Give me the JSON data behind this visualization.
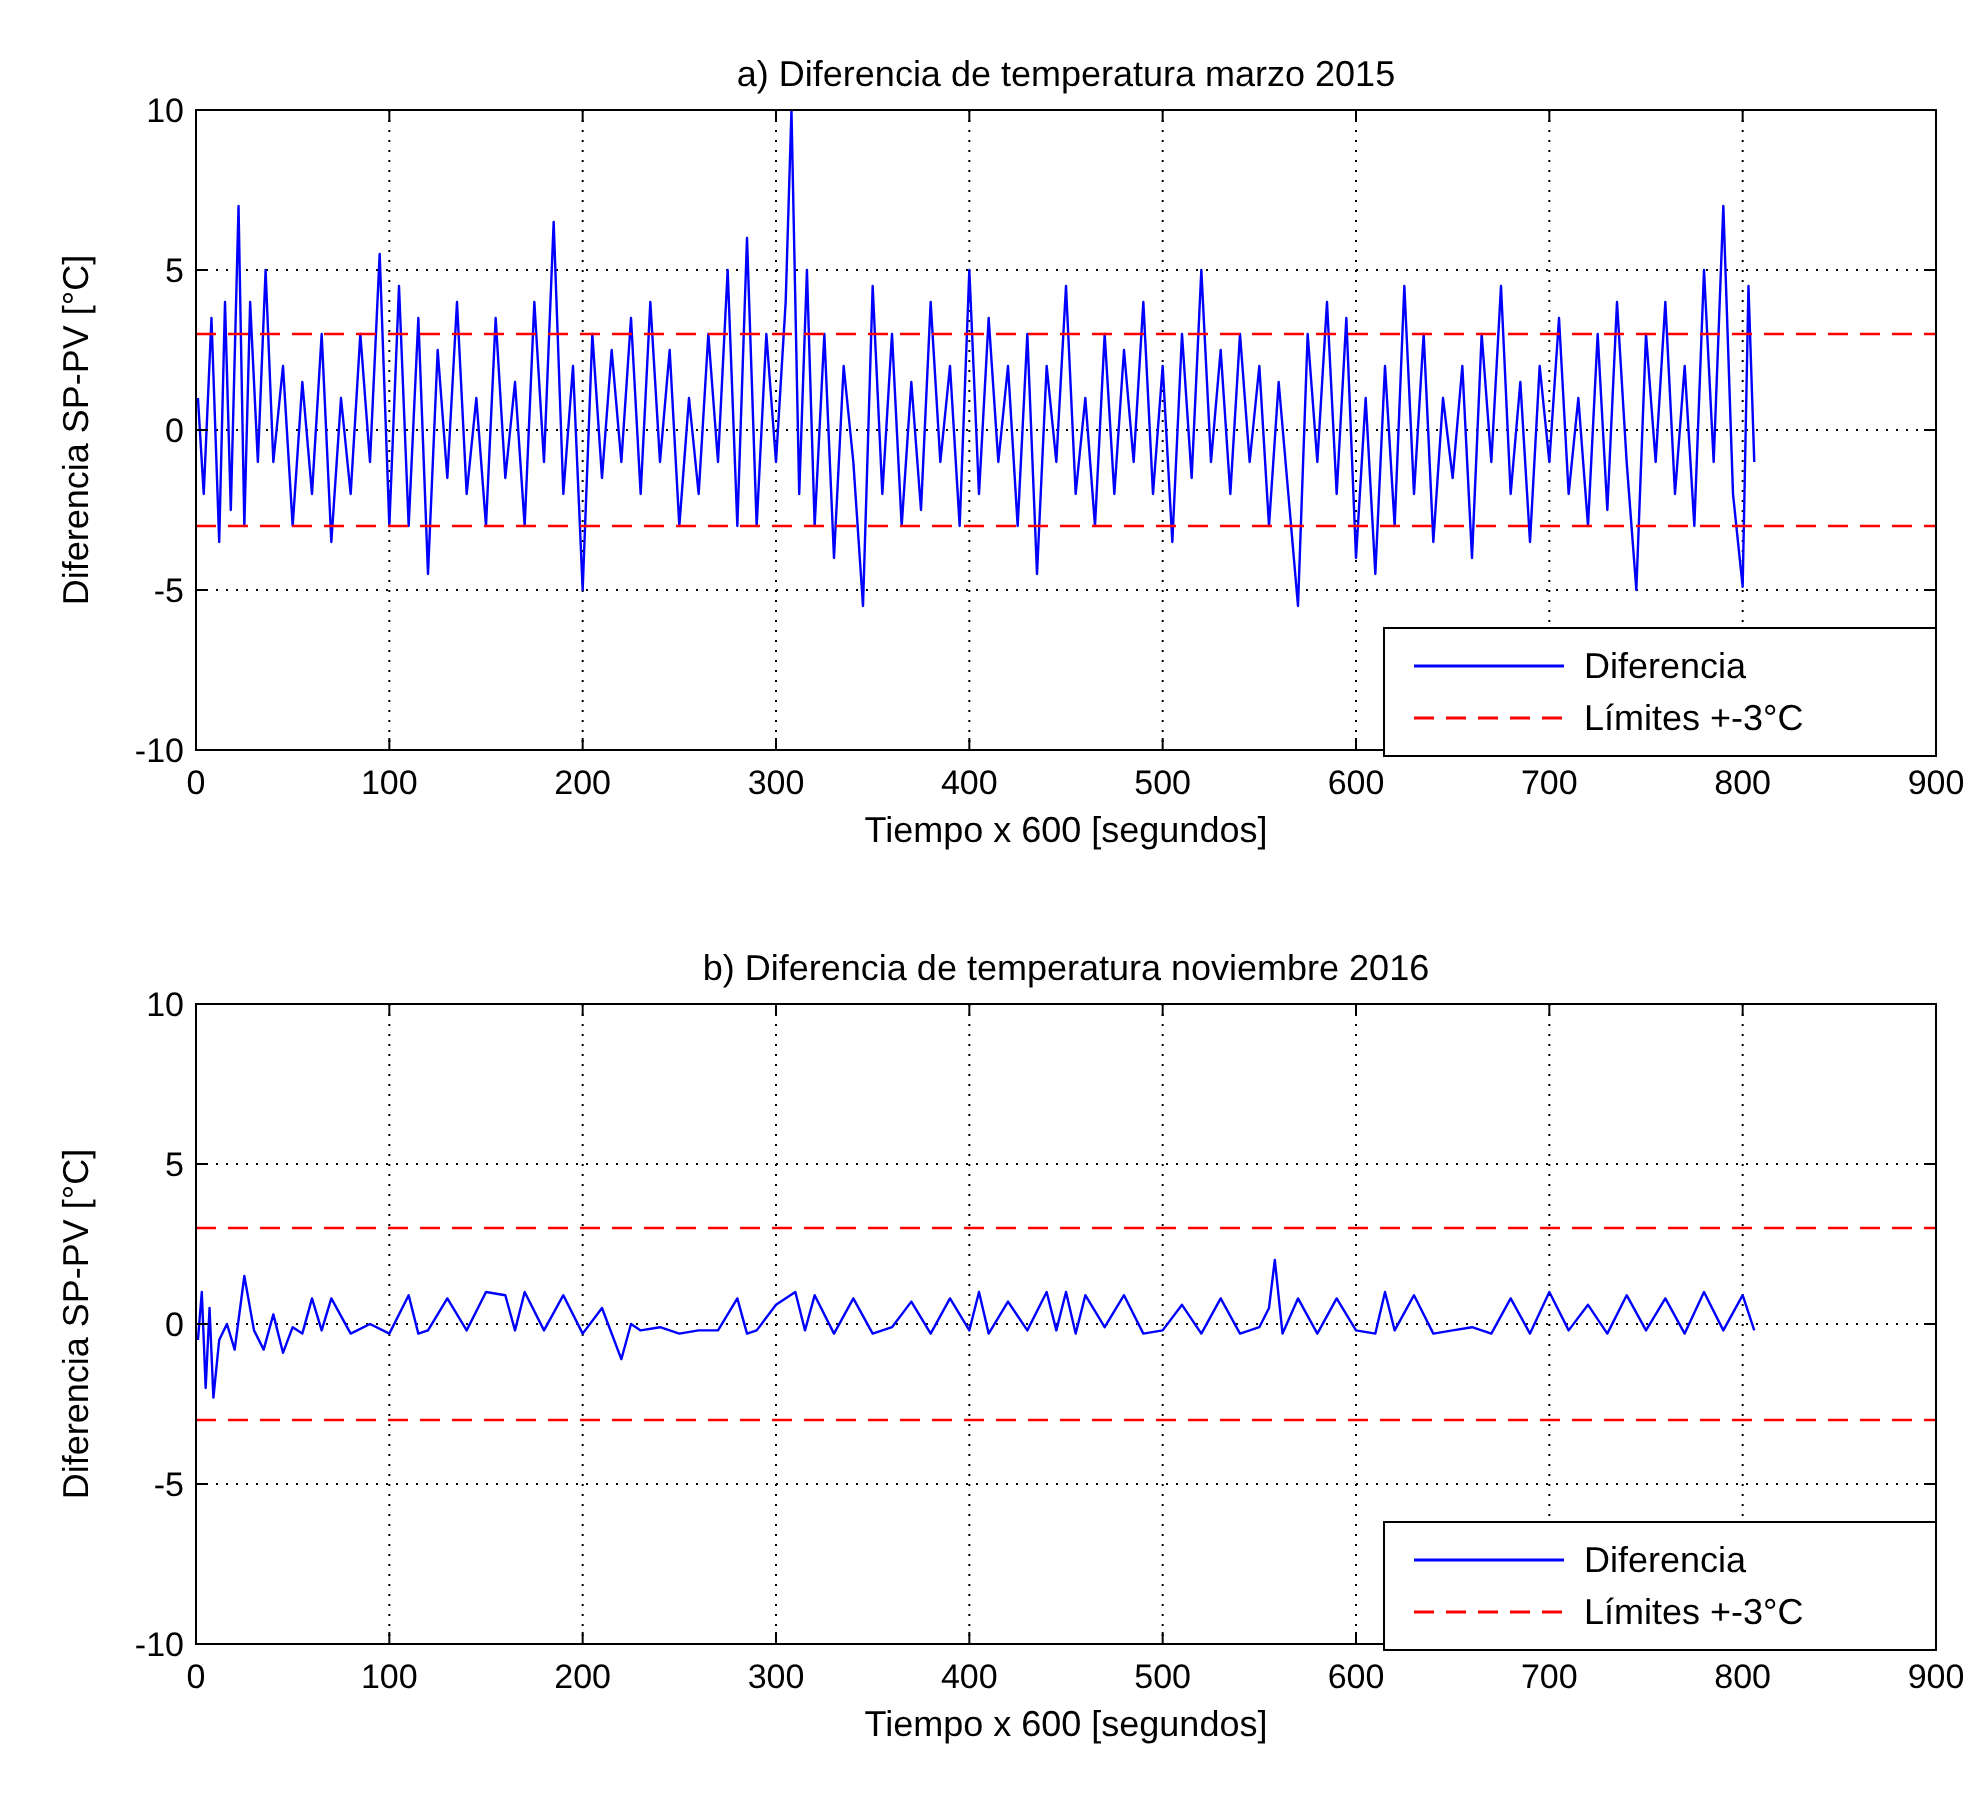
{
  "chart_data": [
    {
      "type": "line",
      "title": "a) Diferencia de temperatura marzo 2015",
      "xlabel": "Tiempo x 600 [segundos]",
      "ylabel": "Diferencia SP-PV [°C]",
      "xlim": [
        0,
        900
      ],
      "xticks": [
        0,
        100,
        200,
        300,
        400,
        500,
        600,
        700,
        800,
        900
      ],
      "ylim": [
        -10,
        10
      ],
      "yticks": [
        -10,
        -5,
        0,
        5,
        10
      ],
      "grid": true,
      "legend": "bottom right",
      "series": [
        {
          "name": "Diferencia",
          "color": "#0000ff",
          "line_style": "solid",
          "x": [
            1,
            4,
            8,
            12,
            15,
            18,
            22,
            25,
            28,
            32,
            36,
            40,
            45,
            50,
            55,
            60,
            65,
            70,
            75,
            80,
            85,
            90,
            95,
            100,
            105,
            110,
            115,
            120,
            125,
            130,
            135,
            140,
            145,
            150,
            155,
            160,
            165,
            170,
            175,
            180,
            185,
            190,
            195,
            200,
            205,
            210,
            215,
            220,
            225,
            230,
            235,
            240,
            245,
            250,
            255,
            260,
            265,
            270,
            275,
            280,
            285,
            290,
            295,
            300,
            305,
            308,
            312,
            316,
            320,
            325,
            330,
            335,
            340,
            345,
            350,
            355,
            360,
            365,
            370,
            375,
            380,
            385,
            390,
            395,
            400,
            405,
            410,
            415,
            420,
            425,
            430,
            435,
            440,
            445,
            450,
            455,
            460,
            465,
            470,
            475,
            480,
            485,
            490,
            495,
            500,
            505,
            510,
            515,
            520,
            525,
            530,
            535,
            540,
            545,
            550,
            555,
            560,
            565,
            570,
            575,
            580,
            585,
            590,
            595,
            600,
            605,
            610,
            615,
            620,
            625,
            630,
            635,
            640,
            645,
            650,
            655,
            660,
            665,
            670,
            675,
            680,
            685,
            690,
            695,
            700,
            705,
            710,
            715,
            720,
            725,
            730,
            735,
            740,
            745,
            750,
            755,
            760,
            765,
            770,
            775,
            780,
            785,
            790,
            795,
            800,
            803,
            806
          ],
          "values": [
            1,
            -2,
            3.5,
            -3.5,
            4,
            -2.5,
            7,
            -3,
            4,
            -1,
            5,
            -1,
            2,
            -3,
            1.5,
            -2,
            3,
            -3.5,
            1,
            -2,
            3,
            -1,
            5.5,
            -3,
            4.5,
            -3,
            3.5,
            -4.5,
            2.5,
            -1.5,
            4,
            -2,
            1,
            -3,
            3.5,
            -1.5,
            1.5,
            -3,
            4,
            -1,
            6.5,
            -2,
            2,
            -5,
            3,
            -1.5,
            2.5,
            -1,
            3.5,
            -2,
            4,
            -1,
            2.5,
            -3,
            1,
            -2,
            3,
            -1,
            5,
            -3,
            6,
            -3,
            3,
            -1,
            4,
            10,
            -2,
            5,
            -3,
            3,
            -4,
            2,
            -1,
            -5.5,
            4.5,
            -2,
            3,
            -3,
            1.5,
            -2.5,
            4,
            -1,
            2,
            -3,
            5,
            -2,
            3.5,
            -1,
            2,
            -3,
            3,
            -4.5,
            2,
            -1,
            4.5,
            -2,
            1,
            -3,
            3,
            -2,
            2.5,
            -1,
            4,
            -2,
            2,
            -3.5,
            3,
            -1.5,
            5,
            -1,
            2.5,
            -2,
            3,
            -1,
            2,
            -3,
            1.5,
            -2,
            -5.5,
            3,
            -1,
            4,
            -2,
            3.5,
            -4,
            1,
            -4.5,
            2,
            -3,
            4.5,
            -2,
            3,
            -3.5,
            1,
            -1.5,
            2,
            -4,
            3,
            -1,
            4.5,
            -2,
            1.5,
            -3.5,
            2,
            -1,
            3.5,
            -2,
            1,
            -3,
            3,
            -2.5,
            4,
            -1,
            -5,
            3,
            -1,
            4,
            -2,
            2,
            -3,
            5,
            -1,
            7,
            -2,
            -4.9,
            4.5,
            -1
          ]
        },
        {
          "name": "Límites +-3°C",
          "color": "#ff0000",
          "line_style": "dashed",
          "x": [
            0,
            900
          ],
          "values": [
            3,
            3
          ]
        },
        {
          "color": "#ff0000",
          "line_style": "dashed",
          "x": [
            0,
            900
          ],
          "values": [
            -3,
            -3
          ]
        }
      ]
    },
    {
      "type": "line",
      "title": "b) Diferencia de temperatura noviembre 2016",
      "xlabel": "Tiempo x 600 [segundos]",
      "ylabel": "Diferencia SP-PV [°C]",
      "xlim": [
        0,
        900
      ],
      "xticks": [
        0,
        100,
        200,
        300,
        400,
        500,
        600,
        700,
        800,
        900
      ],
      "ylim": [
        -10,
        10
      ],
      "yticks": [
        -10,
        -5,
        0,
        5,
        10
      ],
      "grid": true,
      "legend": "bottom right",
      "series": [
        {
          "name": "Diferencia",
          "color": "#0000ff",
          "line_style": "solid",
          "x": [
            1,
            3,
            5,
            7,
            9,
            12,
            16,
            20,
            25,
            30,
            35,
            40,
            45,
            50,
            55,
            60,
            65,
            70,
            80,
            90,
            100,
            110,
            115,
            120,
            130,
            140,
            150,
            160,
            165,
            170,
            180,
            190,
            200,
            210,
            220,
            225,
            230,
            240,
            250,
            260,
            270,
            280,
            285,
            290,
            300,
            310,
            315,
            320,
            330,
            340,
            350,
            360,
            370,
            380,
            390,
            400,
            405,
            410,
            420,
            430,
            440,
            445,
            450,
            455,
            460,
            470,
            480,
            490,
            500,
            510,
            520,
            530,
            540,
            550,
            555,
            558,
            562,
            570,
            580,
            590,
            600,
            610,
            615,
            620,
            630,
            640,
            650,
            660,
            670,
            680,
            690,
            700,
            710,
            720,
            730,
            740,
            750,
            760,
            770,
            780,
            790,
            800,
            806
          ],
          "values": [
            -0.5,
            1,
            -2,
            0.5,
            -2.3,
            -0.5,
            0,
            -0.8,
            1.5,
            -0.2,
            -0.8,
            0.3,
            -0.9,
            -0.1,
            -0.3,
            0.8,
            -0.2,
            0.8,
            -0.3,
            0,
            -0.3,
            0.9,
            -0.3,
            -0.2,
            0.8,
            -0.2,
            1,
            0.9,
            -0.2,
            1,
            -0.2,
            0.9,
            -0.3,
            0.5,
            -1.1,
            0,
            -0.2,
            -0.1,
            -0.3,
            -0.2,
            -0.2,
            0.8,
            -0.3,
            -0.2,
            0.6,
            1,
            -0.2,
            0.9,
            -0.3,
            0.8,
            -0.3,
            -0.1,
            0.7,
            -0.3,
            0.8,
            -0.2,
            1,
            -0.3,
            0.7,
            -0.2,
            1,
            -0.2,
            1,
            -0.3,
            0.9,
            -0.1,
            0.9,
            -0.3,
            -0.2,
            0.6,
            -0.3,
            0.8,
            -0.3,
            -0.1,
            0.5,
            2,
            -0.3,
            0.8,
            -0.3,
            0.8,
            -0.2,
            -0.3,
            1,
            -0.2,
            0.9,
            -0.3,
            -0.2,
            -0.1,
            -0.3,
            0.8,
            -0.3,
            1,
            -0.2,
            0.6,
            -0.3,
            0.9,
            -0.2,
            0.8,
            -0.3,
            1,
            -0.2,
            0.9,
            -0.2
          ]
        },
        {
          "name": "Límites +-3°C",
          "color": "#ff0000",
          "line_style": "dashed",
          "x": [
            0,
            900
          ],
          "values": [
            3,
            3
          ]
        },
        {
          "color": "#ff0000",
          "line_style": "dashed",
          "x": [
            0,
            900
          ],
          "values": [
            -3,
            -3
          ]
        }
      ]
    }
  ]
}
